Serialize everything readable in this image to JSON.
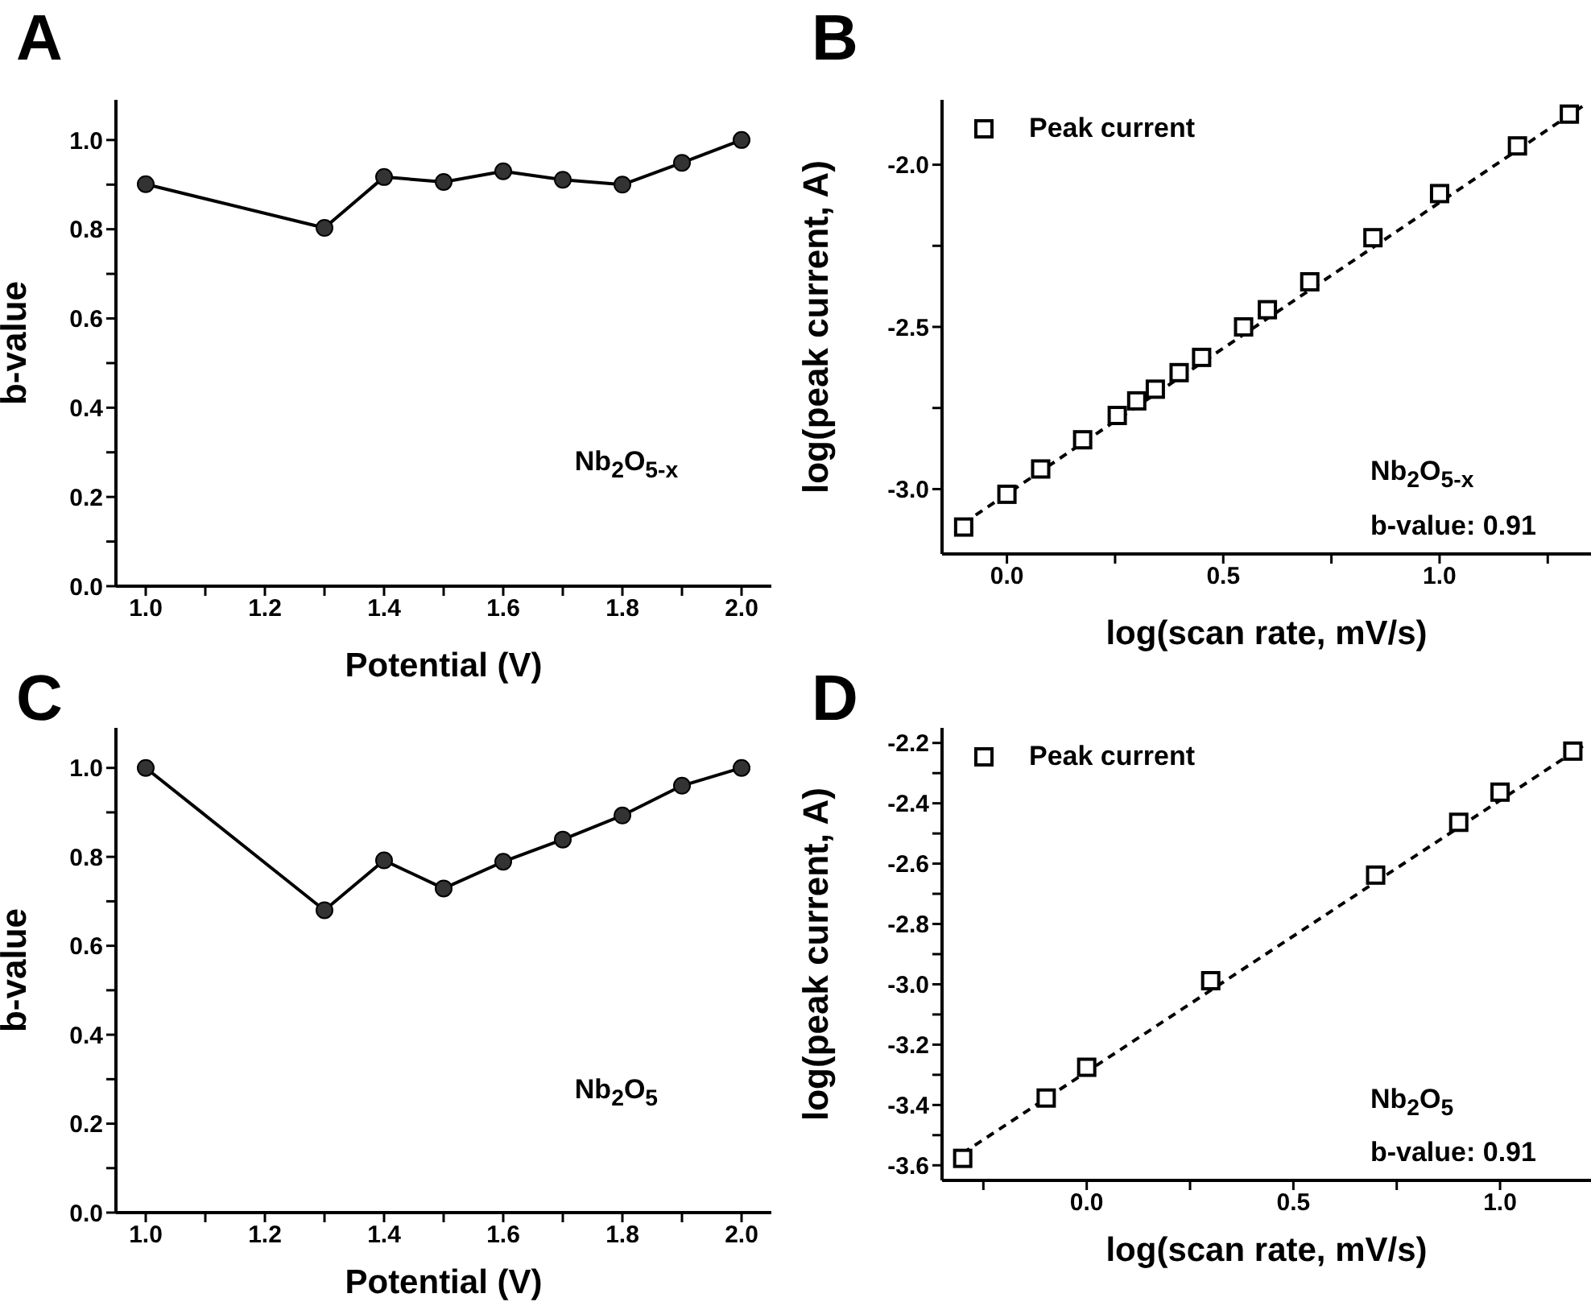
{
  "chart_data": [
    {
      "type": "line",
      "title": "A",
      "xlabel": "Potential (V)",
      "ylabel": "b-value",
      "marker": "circle",
      "grid": false,
      "legend": false,
      "x": [
        1.0,
        1.3,
        1.4,
        1.5,
        1.6,
        1.7,
        1.8,
        1.9,
        2.0
      ],
      "series": [
        {
          "color": "#000000",
          "values": [
            0.901,
            0.803,
            0.917,
            0.906,
            0.93,
            0.911,
            0.9,
            0.949,
            1.0
          ]
        }
      ],
      "xlim": [
        0.95,
        2.05
      ],
      "xticks": [
        {
          "value": 1,
          "label": "1.0"
        },
        {
          "value": 1.1,
          "label": null
        },
        {
          "value": 1.2,
          "label": "1.2"
        },
        {
          "value": 1.3,
          "label": null
        },
        {
          "value": 1.4,
          "label": "1.4"
        },
        {
          "value": 1.5,
          "label": null
        },
        {
          "value": 1.6,
          "label": "1.6"
        },
        {
          "value": 1.7,
          "label": null
        },
        {
          "value": 1.8,
          "label": "1.8"
        },
        {
          "value": 1.9,
          "label": null
        },
        {
          "value": 2,
          "label": "2.0"
        }
      ],
      "ylim": [
        0,
        1.09
      ],
      "yticks": [
        {
          "value": 0,
          "label": "0.0"
        },
        {
          "value": 0.1,
          "label": null
        },
        {
          "value": 0.2,
          "label": "0.2"
        },
        {
          "value": 0.3,
          "label": null
        },
        {
          "value": 0.4,
          "label": "0.4"
        },
        {
          "value": 0.5,
          "label": null
        },
        {
          "value": 0.6,
          "label": "0.6"
        },
        {
          "value": 0.7,
          "label": null
        },
        {
          "value": 0.8,
          "label": "0.8"
        },
        {
          "value": 0.9,
          "label": null
        },
        {
          "value": 1,
          "label": "1.0"
        }
      ],
      "annotations": [
        "Nb$_{2}$O$_{5-x}$"
      ]
    },
    {
      "type": "scatter",
      "title": "B",
      "xlabel": "log(scan rate, mV/s)",
      "ylabel": "log(peak current, A)",
      "grid": false,
      "legend": "top left",
      "series": [
        {
          "name": "Peak current",
          "type": "scatter",
          "marker": "square",
          "color": "#000000",
          "x": [
            -0.1,
            0.0,
            0.078,
            0.175,
            0.255,
            0.3,
            0.343,
            0.398,
            0.45,
            0.547,
            0.602,
            0.7,
            0.846,
            1.0,
            1.18,
            1.3
          ],
          "values": [
            -3.117,
            -3.016,
            -2.938,
            -2.848,
            -2.773,
            -2.728,
            -2.692,
            -2.641,
            -2.594,
            -2.5,
            -2.447,
            -2.361,
            -2.225,
            -2.089,
            -1.942,
            -1.844
          ]
        },
        {
          "type": "line",
          "line_style": "dashed",
          "marker": "none",
          "color": "#000000",
          "x": [
            -0.1,
            1.33
          ],
          "values": [
            -3.105,
            -1.82
          ]
        }
      ],
      "xlim": [
        -0.15,
        1.35
      ],
      "xticks": [
        {
          "value": 0,
          "label": "0.0"
        },
        {
          "value": 0.25,
          "label": null
        },
        {
          "value": 0.5,
          "label": "0.5"
        },
        {
          "value": 0.75,
          "label": null
        },
        {
          "value": 1,
          "label": "1.0"
        },
        {
          "value": 1.25,
          "label": null
        }
      ],
      "ylim": [
        -3.2,
        -1.8
      ],
      "yticks": [
        {
          "value": -3,
          "label": "-3.0"
        },
        {
          "value": -2.75,
          "label": null
        },
        {
          "value": -2.5,
          "label": "-2.5"
        },
        {
          "value": -2.25,
          "label": null
        },
        {
          "value": -2,
          "label": "-2.0"
        }
      ],
      "annotations": [
        "Nb$_{2}$O$_{5-x}$",
        "b-value: 0.91"
      ]
    },
    {
      "type": "line",
      "title": "C",
      "xlabel": "Potential (V)",
      "ylabel": "b-value",
      "marker": "circle",
      "grid": false,
      "legend": false,
      "x": [
        1.0,
        1.3,
        1.4,
        1.5,
        1.6,
        1.7,
        1.8,
        1.9,
        2.0
      ],
      "series": [
        {
          "color": "#000000",
          "values": [
            1.0,
            0.68,
            0.792,
            0.729,
            0.789,
            0.839,
            0.893,
            0.96,
            1.0
          ]
        }
      ],
      "xlim": [
        0.95,
        2.05
      ],
      "xticks": [
        {
          "value": 1,
          "label": "1.0"
        },
        {
          "value": 1.1,
          "label": null
        },
        {
          "value": 1.2,
          "label": "1.2"
        },
        {
          "value": 1.3,
          "label": null
        },
        {
          "value": 1.4,
          "label": "1.4"
        },
        {
          "value": 1.5,
          "label": null
        },
        {
          "value": 1.6,
          "label": "1.6"
        },
        {
          "value": 1.7,
          "label": null
        },
        {
          "value": 1.8,
          "label": "1.8"
        },
        {
          "value": 1.9,
          "label": null
        },
        {
          "value": 2,
          "label": "2.0"
        }
      ],
      "ylim": [
        0,
        1.09
      ],
      "yticks": [
        {
          "value": 0,
          "label": "0.0"
        },
        {
          "value": 0.1,
          "label": null
        },
        {
          "value": 0.2,
          "label": "0.2"
        },
        {
          "value": 0.3,
          "label": null
        },
        {
          "value": 0.4,
          "label": "0.4"
        },
        {
          "value": 0.5,
          "label": null
        },
        {
          "value": 0.6,
          "label": "0.6"
        },
        {
          "value": 0.7,
          "label": null
        },
        {
          "value": 0.8,
          "label": "0.8"
        },
        {
          "value": 0.9,
          "label": null
        },
        {
          "value": 1,
          "label": "1.0"
        }
      ],
      "annotations": [
        "Nb$_{2}$O$_{5}$"
      ]
    },
    {
      "type": "scatter",
      "title": "D",
      "xlabel": "log(scan rate, mV/s)",
      "ylabel": "log(peak current, A)",
      "grid": false,
      "legend": "top left",
      "series": [
        {
          "name": "Peak current",
          "type": "scatter",
          "marker": "square",
          "color": "#000000",
          "x": [
            -0.3,
            -0.098,
            0.0,
            0.3,
            0.699,
            0.9,
            1.0,
            1.176
          ],
          "values": [
            -3.577,
            -3.377,
            -3.275,
            -2.988,
            -2.638,
            -2.463,
            -2.363,
            -2.227
          ]
        },
        {
          "type": "line",
          "line_style": "dashed",
          "marker": "none",
          "color": "#000000",
          "x": [
            -0.3,
            1.2
          ],
          "values": [
            -3.56,
            -2.21
          ]
        }
      ],
      "xlim": [
        -0.35,
        1.22
      ],
      "xticks": [
        {
          "value": -0.25,
          "label": null
        },
        {
          "value": 0,
          "label": "0.0"
        },
        {
          "value": 0.25,
          "label": null
        },
        {
          "value": 0.5,
          "label": "0.5"
        },
        {
          "value": 0.75,
          "label": null
        },
        {
          "value": 1,
          "label": "1.0"
        }
      ],
      "ylim": [
        -3.65,
        -2.15
      ],
      "yticks": [
        {
          "value": -3.6,
          "label": "-3.6"
        },
        {
          "value": -3.5,
          "label": null
        },
        {
          "value": -3.4,
          "label": "-3.4"
        },
        {
          "value": -3.3,
          "label": null
        },
        {
          "value": -3.2,
          "label": "-3.2"
        },
        {
          "value": -3.1,
          "label": null
        },
        {
          "value": -3,
          "label": "-3.0"
        },
        {
          "value": -2.9,
          "label": null
        },
        {
          "value": -2.8,
          "label": "-2.8"
        },
        {
          "value": -2.7,
          "label": null
        },
        {
          "value": -2.6,
          "label": "-2.6"
        },
        {
          "value": -2.5,
          "label": null
        },
        {
          "value": -2.4,
          "label": "-2.4"
        },
        {
          "value": -2.3,
          "label": null
        },
        {
          "value": -2.2,
          "label": "-2.2"
        }
      ],
      "annotations": [
        "Nb$_{2}$O$_{5}$",
        "b-value: 0.91"
      ]
    }
  ]
}
